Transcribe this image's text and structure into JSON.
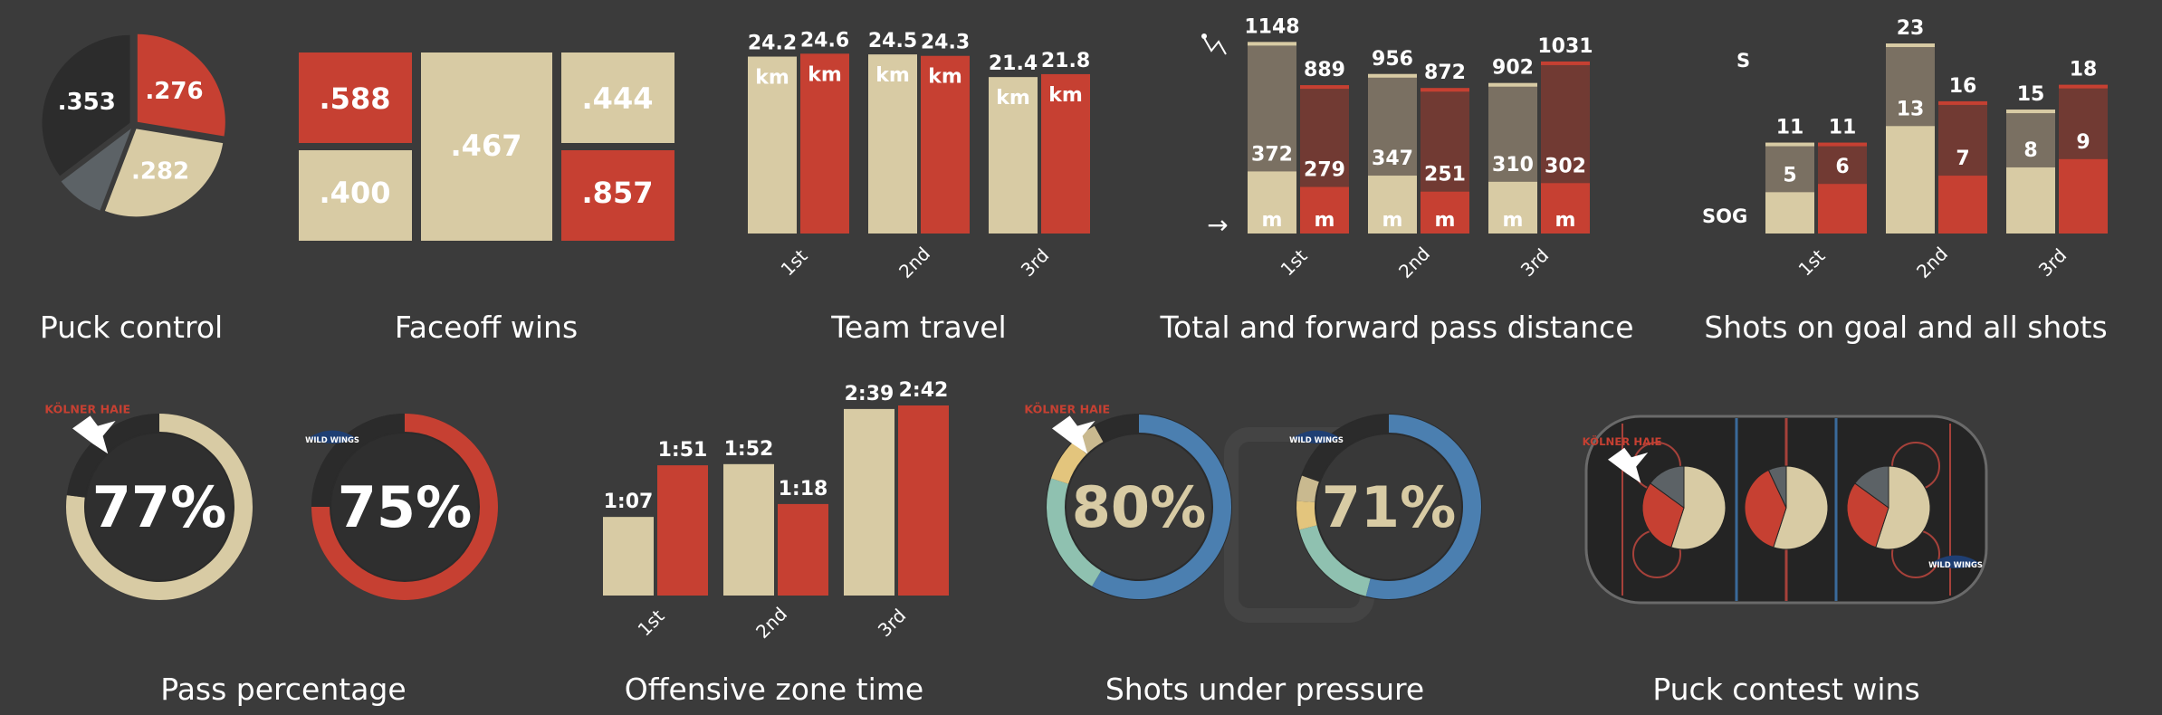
{
  "colors": {
    "background": "#3b3b3b",
    "home": "#d8cba4",
    "away": "#c64032",
    "neutral": "#2c2c2c",
    "gray": "#5c6266",
    "home_dark": "#7a7062",
    "away_dark": "#713a33",
    "blue": "#4b7fb0",
    "teal": "#8fc1b0",
    "yellow": "#e3c57d"
  },
  "teams": {
    "home": "KÖLNER HAIE",
    "away": "WILD WINGS"
  },
  "chart_data": [
    {
      "id": "puck-control",
      "type": "pie",
      "title": "Puck control",
      "slices": [
        {
          "label": ".276",
          "value": 0.276,
          "color": "#c64032"
        },
        {
          "label": ".282",
          "value": 0.282,
          "color": "#d8cba4"
        },
        {
          "label": "",
          "value": 0.089,
          "color": "#5c6266"
        },
        {
          "label": ".353",
          "value": 0.353,
          "color": "#2c2c2c"
        }
      ]
    },
    {
      "id": "faceoff-wins",
      "type": "table",
      "title": "Faceoff wins",
      "cells": [
        {
          "label": ".588",
          "value": 0.588,
          "team": "away"
        },
        {
          "label": ".400",
          "value": 0.4,
          "team": "home"
        },
        {
          "label": ".467",
          "value": 0.467,
          "team": "home"
        },
        {
          "label": ".444",
          "value": 0.444,
          "team": "home"
        },
        {
          "label": ".857",
          "value": 0.857,
          "team": "away"
        }
      ]
    },
    {
      "id": "team-travel",
      "type": "bar",
      "title": "Team travel",
      "categories": [
        "1st",
        "2nd",
        "3rd"
      ],
      "unit": "km",
      "ylim": [
        0,
        26
      ],
      "series": [
        {
          "team": "home",
          "values": [
            24.2,
            24.5,
            21.4
          ],
          "labels": [
            "24.2",
            "24.5",
            "21.4"
          ]
        },
        {
          "team": "away",
          "values": [
            24.6,
            24.3,
            21.8
          ],
          "labels": [
            "24.6",
            "24.3",
            "21.8"
          ]
        }
      ]
    },
    {
      "id": "pass-distance",
      "type": "bar",
      "title": "Total and forward pass distance",
      "categories": [
        "1st",
        "2nd",
        "3rd"
      ],
      "unit": "m",
      "ylim": [
        0,
        1150
      ],
      "series": [
        {
          "team": "home",
          "total": [
            1148,
            956,
            902
          ],
          "forward": [
            372,
            347,
            310
          ]
        },
        {
          "team": "away",
          "total": [
            889,
            872,
            1031
          ],
          "forward": [
            279,
            251,
            302
          ]
        }
      ]
    },
    {
      "id": "shots",
      "type": "bar",
      "title": "Shots on goal and all shots",
      "categories": [
        "1st",
        "2nd",
        "3rd"
      ],
      "axis_labels": {
        "total": "S",
        "inner": "SOG"
      },
      "ylim": [
        0,
        23
      ],
      "series": [
        {
          "team": "home",
          "total": [
            11,
            23,
            15
          ],
          "sog": [
            5,
            13,
            8
          ]
        },
        {
          "team": "away",
          "total": [
            11,
            16,
            18
          ],
          "sog": [
            6,
            7,
            9
          ]
        }
      ]
    },
    {
      "id": "pass-percentage",
      "type": "pie",
      "title": "Pass percentage",
      "items": [
        {
          "team": "home",
          "value": 77,
          "label": "77%"
        },
        {
          "team": "away",
          "value": 75,
          "label": "75%"
        }
      ]
    },
    {
      "id": "offensive-zone-time",
      "type": "bar",
      "title": "Offensive zone time",
      "categories": [
        "1st",
        "2nd",
        "3rd"
      ],
      "ylim": [
        0,
        162
      ],
      "series": [
        {
          "team": "home",
          "values": [
            67,
            112,
            159
          ],
          "labels": [
            "1:07",
            "1:52",
            "2:39"
          ]
        },
        {
          "team": "away",
          "values": [
            111,
            78,
            162
          ],
          "labels": [
            "1:51",
            "1:18",
            "2:42"
          ]
        }
      ]
    },
    {
      "id": "shots-under-pressure",
      "type": "pie",
      "title": "Shots under pressure",
      "items": [
        {
          "team": "home",
          "value": 80,
          "label": "80%",
          "segments": [
            0.585,
            0.215,
            0.075,
            0.045,
            0.08
          ]
        },
        {
          "team": "away",
          "value": 71,
          "label": "71%",
          "segments": [
            0.54,
            0.17,
            0.05,
            0.045,
            0.195
          ]
        }
      ]
    },
    {
      "id": "puck-contest-wins",
      "type": "pie",
      "title": "Puck contest wins",
      "zones": [
        {
          "home": 0.55,
          "away": 0.3,
          "neutral": 0.15
        },
        {
          "home": 0.55,
          "away": 0.38,
          "neutral": 0.07
        },
        {
          "home": 0.55,
          "away": 0.3,
          "neutral": 0.15
        }
      ]
    }
  ]
}
